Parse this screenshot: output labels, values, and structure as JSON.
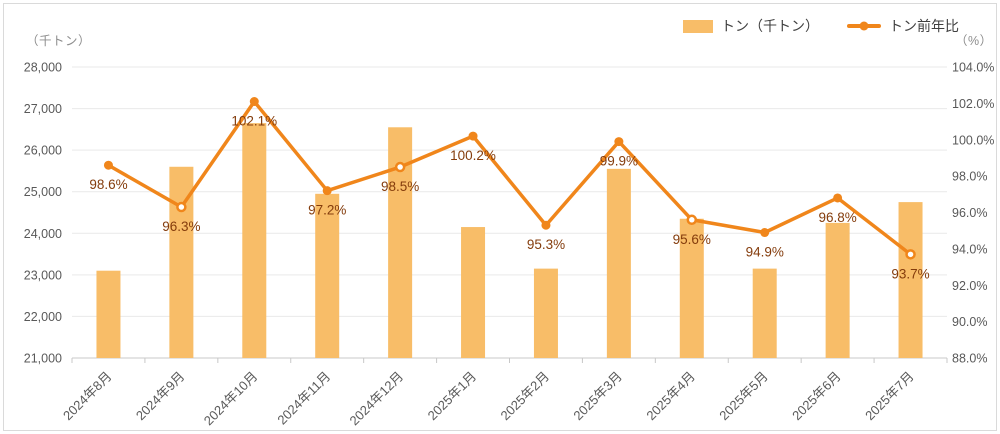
{
  "chart": {
    "left_axis_title": "（千トン）",
    "right_axis_title": "（%）",
    "legend": {
      "bar_label": "トン（千トン）",
      "line_label": "トン前年比"
    }
  },
  "chart_data": {
    "type": "bar",
    "subtype": "combo-bar-line",
    "categories": [
      "2024年8月",
      "2024年9月",
      "2024年10月",
      "2024年11月",
      "2024年12月",
      "2025年1月",
      "2025年2月",
      "2025年3月",
      "2025年4月",
      "2025年5月",
      "2025年6月",
      "2025年7月"
    ],
    "series": [
      {
        "name": "トン（千トン）",
        "type": "bar",
        "axis": "left",
        "values": [
          23100,
          25600,
          26650,
          24950,
          26550,
          24150,
          23150,
          25550,
          24350,
          23150,
          24250,
          24750
        ]
      },
      {
        "name": "トン前年比",
        "type": "line",
        "axis": "right",
        "values": [
          98.6,
          96.3,
          102.1,
          97.2,
          98.5,
          100.2,
          95.3,
          99.9,
          95.6,
          94.9,
          96.8,
          93.7
        ],
        "point_labels": [
          "98.6%",
          "96.3%",
          "102.1%",
          "97.2%",
          "98.5%",
          "100.2%",
          "95.3%",
          "99.9%",
          "95.6%",
          "94.9%",
          "96.8%",
          "93.7%"
        ],
        "open_marker_indexes": [
          1,
          4,
          8,
          11
        ]
      }
    ],
    "left_axis": {
      "title": "（千トン）",
      "min": 21000,
      "max": 28000,
      "step": 1000
    },
    "right_axis": {
      "title": "（%）",
      "min": 88,
      "max": 104,
      "step": 2
    },
    "grid": true,
    "legend_position": "top-right",
    "colors": {
      "bar": "#F8BD68",
      "line": "#F0861B",
      "data_label": "#843C0C",
      "axis_text": "#595959",
      "axis_title_text": "#8E8E8E",
      "grid_line": "#E9E9E9",
      "axis_line": "#C8C8C8",
      "legend_text": "#404040"
    }
  }
}
